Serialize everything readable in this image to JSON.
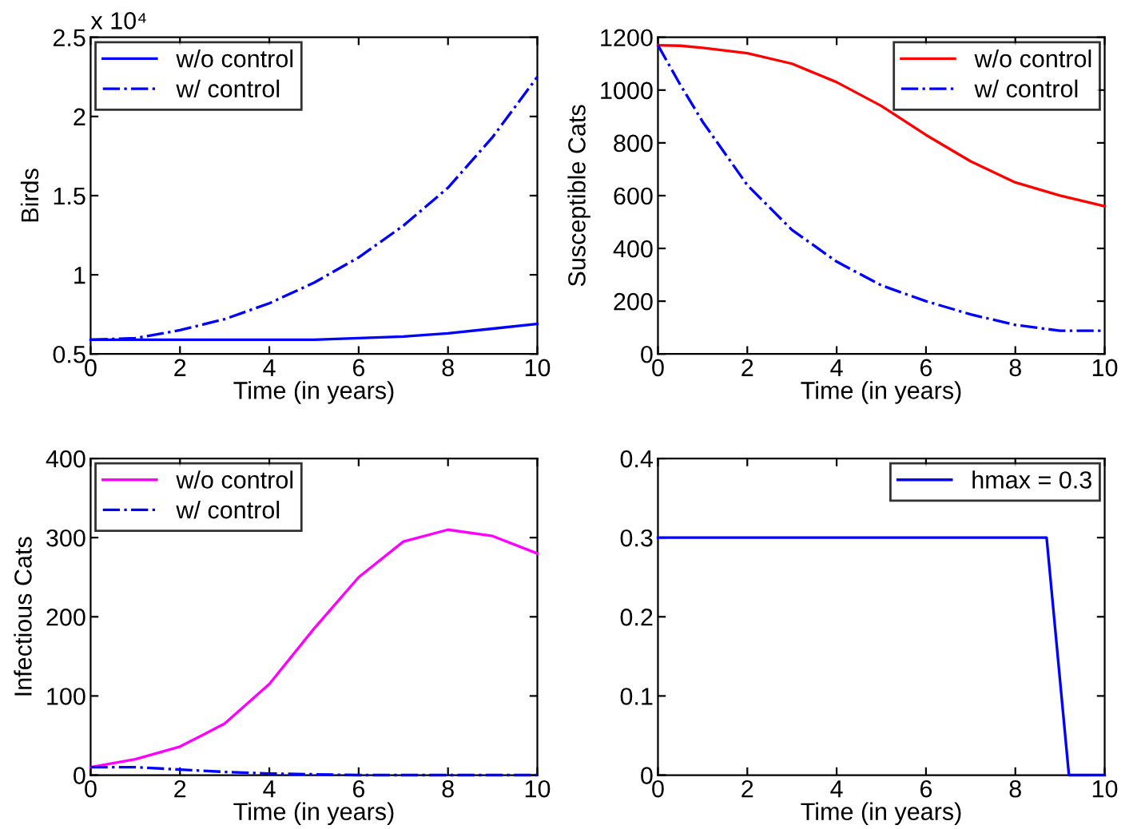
{
  "chart_data": [
    {
      "type": "line",
      "xlabel": "Time (in years)",
      "ylabel": "Birds",
      "x": [
        0,
        1,
        2,
        3,
        4,
        5,
        6,
        7,
        8,
        9,
        10
      ],
      "xlim": [
        0,
        10
      ],
      "xticks": [
        0,
        2,
        4,
        6,
        8,
        10
      ],
      "ylim": [
        0.5,
        2.5
      ],
      "yticks": [
        0.5,
        1,
        1.5,
        2,
        2.5
      ],
      "annotations": [
        "x 10⁴"
      ],
      "legend": "top left",
      "grid": false,
      "series": [
        {
          "name": "w/o control",
          "color": "#0000ff",
          "line_style": "solid",
          "values": [
            0.59,
            0.59,
            0.59,
            0.59,
            0.59,
            0.59,
            0.6,
            0.61,
            0.63,
            0.66,
            0.69
          ]
        },
        {
          "name": "w/ control",
          "color": "#0000ff",
          "line_style": "dashdot",
          "values": [
            0.59,
            0.6,
            0.65,
            0.72,
            0.82,
            0.95,
            1.11,
            1.31,
            1.55,
            1.87,
            2.25
          ]
        }
      ]
    },
    {
      "type": "line",
      "xlabel": "Time (in years)",
      "ylabel": "Susceptible Cats",
      "x": [
        0,
        0.5,
        1,
        2,
        3,
        4,
        5,
        6,
        7,
        8,
        9,
        10
      ],
      "xlim": [
        0,
        10
      ],
      "xticks": [
        0,
        2,
        4,
        6,
        8,
        10
      ],
      "ylim": [
        0,
        1200
      ],
      "yticks": [
        0,
        200,
        400,
        600,
        800,
        1000,
        1200
      ],
      "legend": "top right",
      "grid": false,
      "series": [
        {
          "name": "w/o control",
          "color": "#ff0000",
          "line_style": "solid",
          "values": [
            1170,
            1168,
            1160,
            1140,
            1100,
            1030,
            940,
            830,
            730,
            650,
            600,
            560
          ]
        },
        {
          "name": "w/ control",
          "color": "#0000ff",
          "line_style": "dashdot",
          "values": [
            1170,
            1020,
            880,
            640,
            470,
            350,
            260,
            200,
            150,
            110,
            88,
            88
          ]
        }
      ]
    },
    {
      "type": "line",
      "xlabel": "Time (in years)",
      "ylabel": "Infectious Cats",
      "x": [
        0,
        1,
        2,
        3,
        4,
        5,
        6,
        7,
        8,
        9,
        10
      ],
      "xlim": [
        0,
        10
      ],
      "xticks": [
        0,
        2,
        4,
        6,
        8,
        10
      ],
      "ylim": [
        0,
        400
      ],
      "yticks": [
        0,
        100,
        200,
        300,
        400
      ],
      "legend": "top left",
      "grid": false,
      "series": [
        {
          "name": "w/o control",
          "color": "#ff00ff",
          "line_style": "solid",
          "values": [
            10,
            20,
            36,
            65,
            115,
            185,
            250,
            295,
            310,
            302,
            280
          ]
        },
        {
          "name": "w/ control",
          "color": "#0000ff",
          "line_style": "dashdot",
          "values": [
            10,
            10,
            7,
            4,
            2,
            1,
            0,
            0,
            0,
            0,
            0
          ]
        }
      ]
    },
    {
      "type": "line",
      "xlabel": "Time (in years)",
      "xlim": [
        0,
        10
      ],
      "xticks": [
        0,
        2,
        4,
        6,
        8,
        10
      ],
      "ylim": [
        0,
        0.4
      ],
      "yticks": [
        0,
        0.1,
        0.2,
        0.3,
        0.4
      ],
      "legend": "top right",
      "grid": false,
      "series": [
        {
          "name": "hmax = 0.3",
          "color": "#0000ff",
          "line_style": "solid",
          "x": [
            0,
            8.7,
            9.2,
            10
          ],
          "values": [
            0.3,
            0.3,
            0,
            0
          ]
        }
      ]
    }
  ]
}
